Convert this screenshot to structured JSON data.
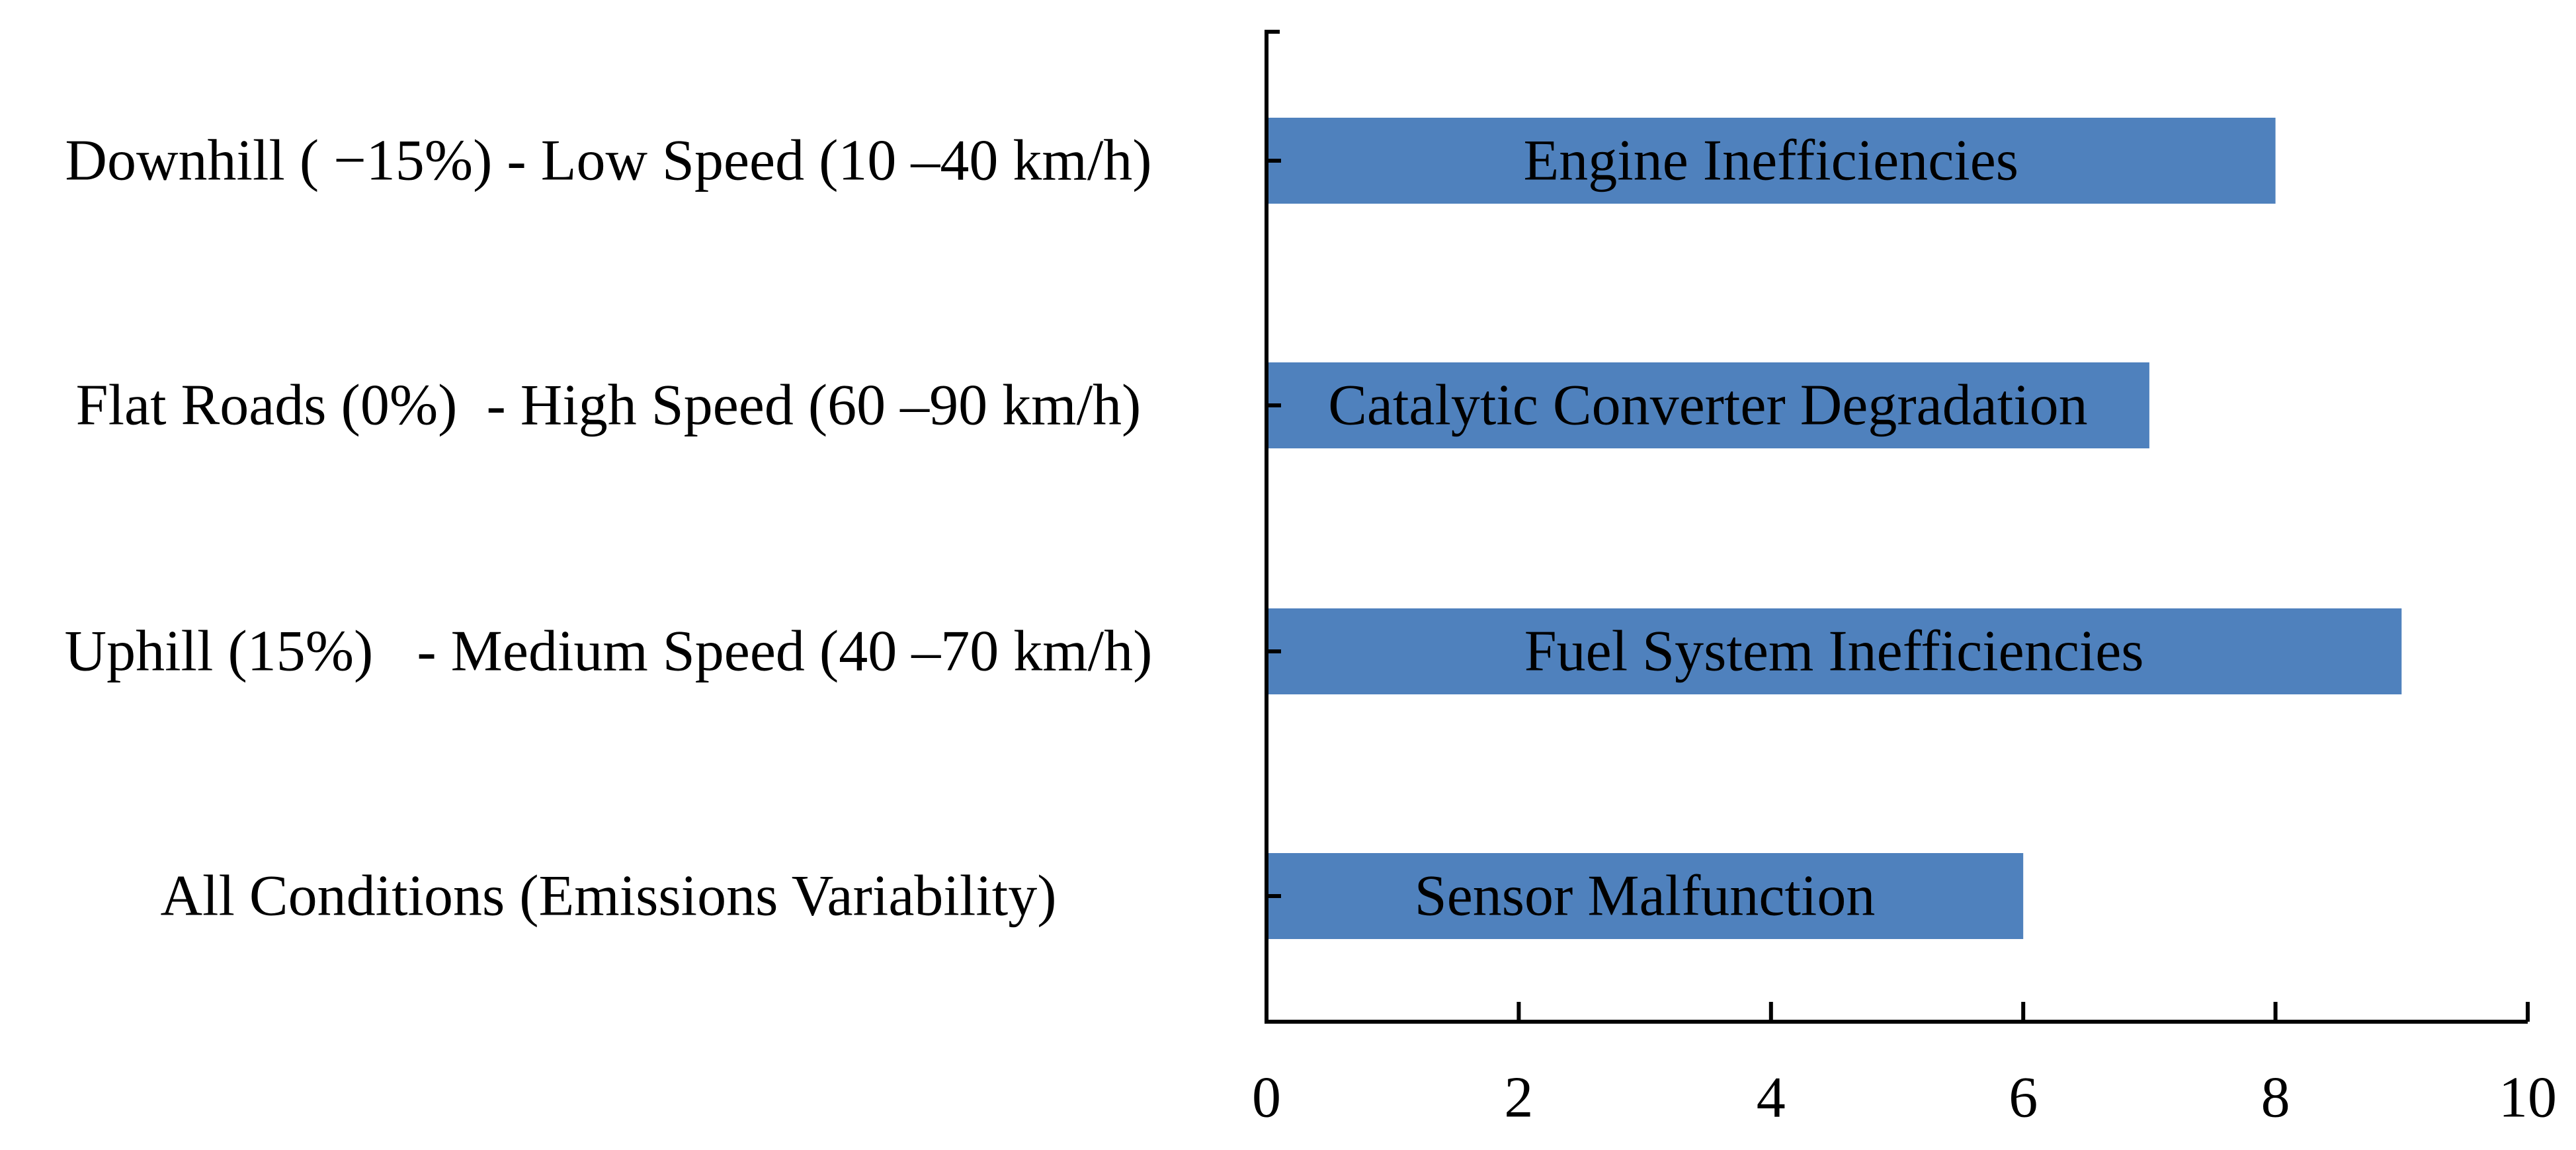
{
  "chart_data": {
    "type": "bar",
    "orientation": "horizontal",
    "categories": [
      "Downhill ( −15%) - Low Speed (10 –40 km/h)",
      "Flat Roads (0%)  - High Speed (60 –90 km/h)",
      "Uphill (15%)   - Medium Speed (40 –70 km/h)",
      "All Conditions (Emissions Variability)"
    ],
    "values": [
      8,
      7,
      9,
      6
    ],
    "bar_labels": [
      "Engine Inefficiencies",
      "Catalytic Converter Degradation",
      "Fuel System Inefficiencies",
      "Sensor Malfunction"
    ],
    "xlim": [
      0,
      10
    ],
    "xticks": [
      "0",
      "2",
      "4",
      "6",
      "8",
      "10"
    ],
    "bar_color": "#4F81BD",
    "grid": false
  }
}
